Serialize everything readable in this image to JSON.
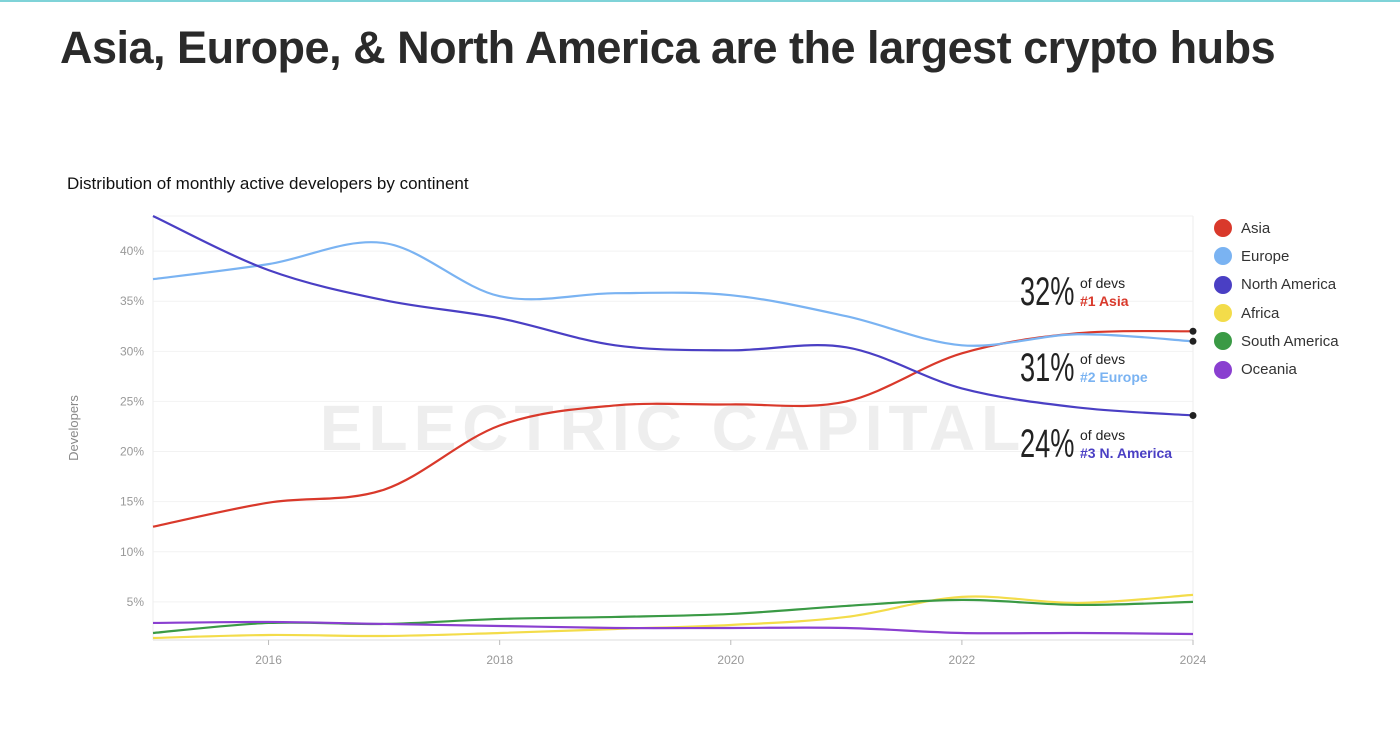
{
  "title": "Asia, Europe, & North America are the largest crypto hubs",
  "chart_data": {
    "type": "line",
    "title": "Distribution of monthly active developers by continent",
    "ylabel": "Developers",
    "xlabel": "",
    "xlim": [
      2015,
      2024
    ],
    "ylim": [
      1.2,
      43.5
    ],
    "x_ticks": [
      "2016",
      "2018",
      "2020",
      "2022",
      "2024"
    ],
    "y_ticks": [
      "5%",
      "10%",
      "15%",
      "20%",
      "25%",
      "30%",
      "35%",
      "40%"
    ],
    "grid": true,
    "legend_placement": "right",
    "watermark": "ELECTRIC CAPITAL",
    "x": [
      2015,
      2016,
      2017,
      2018,
      2019,
      2020,
      2021,
      2022,
      2023,
      2024
    ],
    "series": [
      {
        "name": "Asia",
        "color": "#d9392b",
        "values": [
          12.5,
          14.9,
          16.2,
          22.6,
          24.6,
          24.7,
          25.0,
          29.8,
          31.8,
          32.0
        ]
      },
      {
        "name": "Europe",
        "color": "#7ab3f2",
        "values": [
          37.2,
          38.7,
          40.8,
          35.5,
          35.8,
          35.6,
          33.5,
          30.6,
          31.7,
          31.0
        ]
      },
      {
        "name": "North America",
        "color": "#4a3fc4",
        "values": [
          43.5,
          38.1,
          35.1,
          33.3,
          30.6,
          30.1,
          30.4,
          26.3,
          24.4,
          23.6
        ]
      },
      {
        "name": "Africa",
        "color": "#f3dc4a",
        "values": [
          1.4,
          1.7,
          1.6,
          1.9,
          2.3,
          2.7,
          3.5,
          5.5,
          4.9,
          5.7
        ]
      },
      {
        "name": "South America",
        "color": "#3a9a45",
        "values": [
          1.9,
          2.9,
          2.8,
          3.3,
          3.5,
          3.8,
          4.6,
          5.2,
          4.7,
          5.0
        ]
      },
      {
        "name": "Oceania",
        "color": "#8a3fd0",
        "values": [
          2.9,
          3.0,
          2.8,
          2.6,
          2.4,
          2.4,
          2.4,
          1.9,
          1.9,
          1.8
        ]
      }
    ],
    "annotations": [
      {
        "value": "32%",
        "text": "of devs",
        "rank": "#1 Asia",
        "color": "#d9392b"
      },
      {
        "value": "31%",
        "text": "of devs",
        "rank": "#2 Europe",
        "color": "#7ab3f2"
      },
      {
        "value": "24%",
        "text": "of devs",
        "rank": "#3 N. America",
        "color": "#4a3fc4"
      }
    ]
  }
}
